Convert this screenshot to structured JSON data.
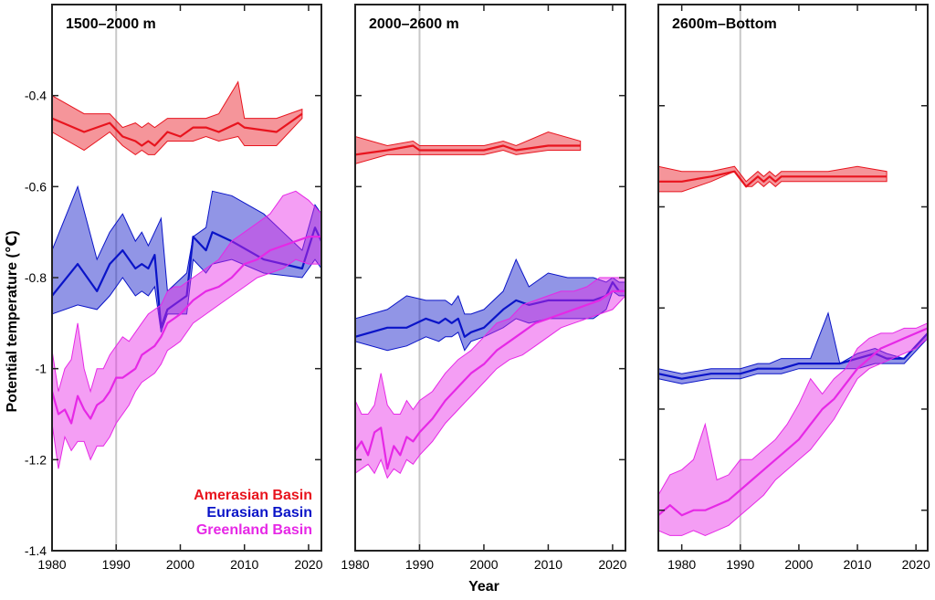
{
  "figure": {
    "ylabel": "Potential temperature (℃)",
    "xlabel": "Year"
  },
  "legend": [
    {
      "name": "Amerasian Basin",
      "color": "#e8141e"
    },
    {
      "name": "Eurasian Basin",
      "color": "#0a14c8"
    },
    {
      "name": "Greenland Basin",
      "color": "#e628e6"
    }
  ],
  "chart_data": [
    {
      "type": "line",
      "title": "1500–2000 m",
      "xlim": [
        1980,
        2022
      ],
      "ylim": [
        -1.4,
        -0.2
      ],
      "xticks": [
        1980,
        1990,
        2000,
        2010,
        2020
      ],
      "yticks": [
        -1.4,
        -1.2,
        -1,
        -0.8,
        -0.6,
        -0.4
      ],
      "ytick_labels": [
        "-1.4",
        "-1.2",
        "-1",
        "-0.8",
        "-0.6",
        "-0.4"
      ],
      "reference_line_x": 1990,
      "series": [
        {
          "name": "Amerasian Basin",
          "color": "#e8141e",
          "x": [
            1980,
            1985,
            1989,
            1991,
            1993,
            1994,
            1995,
            1996,
            1998,
            2000,
            2002,
            2004,
            2006,
            2009,
            2010,
            2015,
            2019
          ],
          "mean": [
            -0.45,
            -0.48,
            -0.46,
            -0.49,
            -0.5,
            -0.51,
            -0.5,
            -0.51,
            -0.48,
            -0.49,
            -0.47,
            -0.47,
            -0.48,
            -0.46,
            -0.47,
            -0.48,
            -0.44
          ],
          "upper": [
            -0.4,
            -0.44,
            -0.44,
            -0.47,
            -0.46,
            -0.47,
            -0.46,
            -0.47,
            -0.45,
            -0.45,
            -0.45,
            -0.45,
            -0.44,
            -0.37,
            -0.45,
            -0.45,
            -0.43
          ],
          "lower": [
            -0.48,
            -0.52,
            -0.48,
            -0.51,
            -0.53,
            -0.52,
            -0.53,
            -0.53,
            -0.5,
            -0.5,
            -0.5,
            -0.49,
            -0.5,
            -0.49,
            -0.51,
            -0.51,
            -0.45
          ]
        },
        {
          "name": "Eurasian Basin",
          "color": "#0a14c8",
          "x": [
            1980,
            1984,
            1987,
            1989,
            1991,
            1993,
            1994,
            1995,
            1996,
            1997,
            1998,
            2001,
            2002,
            2004,
            2005,
            2008,
            2013,
            2019,
            2021,
            2022
          ],
          "mean": [
            -0.84,
            -0.77,
            -0.83,
            -0.77,
            -0.74,
            -0.78,
            -0.77,
            -0.78,
            -0.75,
            -0.91,
            -0.87,
            -0.84,
            -0.71,
            -0.74,
            -0.7,
            -0.72,
            -0.76,
            -0.78,
            -0.69,
            -0.72
          ],
          "upper": [
            -0.74,
            -0.6,
            -0.76,
            -0.7,
            -0.66,
            -0.72,
            -0.7,
            -0.73,
            -0.7,
            -0.67,
            -0.83,
            -0.79,
            -0.71,
            -0.69,
            -0.61,
            -0.62,
            -0.66,
            -0.74,
            -0.64,
            -0.66
          ],
          "lower": [
            -0.88,
            -0.86,
            -0.87,
            -0.84,
            -0.8,
            -0.84,
            -0.83,
            -0.84,
            -0.82,
            -0.92,
            -0.88,
            -0.88,
            -0.76,
            -0.79,
            -0.77,
            -0.76,
            -0.79,
            -0.8,
            -0.76,
            -0.78
          ]
        },
        {
          "name": "Greenland Basin",
          "color": "#e628e6",
          "x": [
            1980,
            1981,
            1982,
            1983,
            1984,
            1985,
            1986,
            1987,
            1988,
            1989,
            1990,
            1991,
            1992,
            1993,
            1994,
            1995,
            1996,
            1997,
            1998,
            1999,
            2000,
            2002,
            2004,
            2006,
            2008,
            2010,
            2012,
            2014,
            2016,
            2018,
            2020,
            2022
          ],
          "mean": [
            -1.05,
            -1.1,
            -1.09,
            -1.12,
            -1.06,
            -1.09,
            -1.11,
            -1.08,
            -1.07,
            -1.05,
            -1.02,
            -1.02,
            -1.01,
            -1.0,
            -0.97,
            -0.96,
            -0.95,
            -0.93,
            -0.9,
            -0.89,
            -0.88,
            -0.85,
            -0.83,
            -0.82,
            -0.8,
            -0.77,
            -0.76,
            -0.74,
            -0.73,
            -0.72,
            -0.71,
            -0.71
          ],
          "upper": [
            -0.96,
            -1.05,
            -1.0,
            -0.98,
            -0.9,
            -1.0,
            -1.05,
            -1.0,
            -1.0,
            -0.97,
            -0.95,
            -0.93,
            -0.94,
            -0.92,
            -0.9,
            -0.88,
            -0.87,
            -0.86,
            -0.83,
            -0.82,
            -0.82,
            -0.8,
            -0.78,
            -0.76,
            -0.72,
            -0.7,
            -0.68,
            -0.66,
            -0.62,
            -0.61,
            -0.63,
            -0.66
          ],
          "lower": [
            -1.12,
            -1.22,
            -1.15,
            -1.18,
            -1.16,
            -1.16,
            -1.2,
            -1.17,
            -1.17,
            -1.15,
            -1.12,
            -1.1,
            -1.08,
            -1.05,
            -1.03,
            -1.02,
            -1.01,
            -0.99,
            -0.96,
            -0.95,
            -0.94,
            -0.9,
            -0.88,
            -0.86,
            -0.84,
            -0.82,
            -0.8,
            -0.79,
            -0.78,
            -0.76,
            -0.77,
            -0.77
          ]
        }
      ]
    },
    {
      "type": "line",
      "title": "2000–2600 m",
      "xlim": [
        1980,
        2022
      ],
      "ylim": [
        -1.4,
        -0.2
      ],
      "xticks": [
        1980,
        1990,
        2000,
        2010,
        2020
      ],
      "yticks": [
        -1.4,
        -1.2,
        -1,
        -0.8,
        -0.6,
        -0.4
      ],
      "reference_line_x": 1990,
      "series": [
        {
          "name": "Amerasian Basin",
          "color": "#e8141e",
          "x": [
            1980,
            1985,
            1989,
            1990,
            1995,
            2000,
            2003,
            2005,
            2010,
            2015
          ],
          "mean": [
            -0.53,
            -0.52,
            -0.51,
            -0.52,
            -0.52,
            -0.52,
            -0.51,
            -0.52,
            -0.51,
            -0.51
          ],
          "upper": [
            -0.49,
            -0.51,
            -0.5,
            -0.51,
            -0.51,
            -0.51,
            -0.5,
            -0.51,
            -0.48,
            -0.5
          ],
          "lower": [
            -0.55,
            -0.53,
            -0.53,
            -0.53,
            -0.53,
            -0.53,
            -0.52,
            -0.53,
            -0.52,
            -0.52
          ]
        },
        {
          "name": "Eurasian Basin",
          "color": "#0a14c8",
          "x": [
            1980,
            1985,
            1988,
            1991,
            1993,
            1994,
            1995,
            1996,
            1997,
            1998,
            2000,
            2003,
            2005,
            2007,
            2010,
            2013,
            2017,
            2019,
            2020,
            2021,
            2022
          ],
          "mean": [
            -0.93,
            -0.91,
            -0.91,
            -0.89,
            -0.9,
            -0.89,
            -0.9,
            -0.89,
            -0.93,
            -0.92,
            -0.91,
            -0.87,
            -0.85,
            -0.86,
            -0.85,
            -0.85,
            -0.85,
            -0.84,
            -0.81,
            -0.83,
            -0.83
          ],
          "upper": [
            -0.89,
            -0.87,
            -0.84,
            -0.85,
            -0.85,
            -0.85,
            -0.86,
            -0.84,
            -0.88,
            -0.88,
            -0.87,
            -0.83,
            -0.76,
            -0.82,
            -0.79,
            -0.8,
            -0.8,
            -0.81,
            -0.8,
            -0.81,
            -0.81
          ],
          "lower": [
            -0.94,
            -0.96,
            -0.95,
            -0.93,
            -0.94,
            -0.93,
            -0.93,
            -0.92,
            -0.96,
            -0.94,
            -0.93,
            -0.91,
            -0.89,
            -0.9,
            -0.89,
            -0.89,
            -0.89,
            -0.87,
            -0.83,
            -0.84,
            -0.84
          ]
        },
        {
          "name": "Greenland Basin",
          "color": "#e628e6",
          "x": [
            1980,
            1981,
            1982,
            1983,
            1984,
            1985,
            1986,
            1987,
            1988,
            1989,
            1990,
            1992,
            1994,
            1996,
            1998,
            2000,
            2002,
            2004,
            2006,
            2008,
            2010,
            2012,
            2014,
            2016,
            2018,
            2020,
            2022
          ],
          "mean": [
            -1.18,
            -1.16,
            -1.19,
            -1.14,
            -1.13,
            -1.22,
            -1.17,
            -1.19,
            -1.15,
            -1.16,
            -1.14,
            -1.11,
            -1.07,
            -1.04,
            -1.01,
            -0.99,
            -0.96,
            -0.94,
            -0.92,
            -0.9,
            -0.89,
            -0.88,
            -0.87,
            -0.86,
            -0.85,
            -0.83,
            -0.83
          ],
          "upper": [
            -1.07,
            -1.1,
            -1.1,
            -1.08,
            -1.01,
            -1.08,
            -1.1,
            -1.1,
            -1.07,
            -1.09,
            -1.07,
            -1.05,
            -1.01,
            -0.98,
            -0.96,
            -0.93,
            -0.9,
            -0.89,
            -0.86,
            -0.85,
            -0.84,
            -0.83,
            -0.83,
            -0.82,
            -0.8,
            -0.8,
            -0.8
          ],
          "lower": [
            -1.23,
            -1.22,
            -1.21,
            -1.23,
            -1.2,
            -1.24,
            -1.22,
            -1.23,
            -1.2,
            -1.21,
            -1.19,
            -1.16,
            -1.12,
            -1.09,
            -1.06,
            -1.03,
            -1.0,
            -0.98,
            -0.97,
            -0.95,
            -0.93,
            -0.91,
            -0.9,
            -0.89,
            -0.88,
            -0.87,
            -0.84
          ]
        }
      ]
    },
    {
      "type": "line",
      "title": "2600m–Bottom",
      "xlim": [
        1976,
        2022
      ],
      "ylim": [
        -1.28,
        -0.2
      ],
      "xticks": [
        1980,
        1990,
        2000,
        2010,
        2020
      ],
      "yticks": [
        -1.2,
        -1,
        -0.8,
        -0.6,
        -0.4
      ],
      "reference_line_x": 1990,
      "series": [
        {
          "name": "Amerasian Basin",
          "color": "#e8141e",
          "x": [
            1976,
            1980,
            1985,
            1989,
            1991,
            1992,
            1993,
            1994,
            1995,
            1996,
            1997,
            2000,
            2005,
            2010,
            2015
          ],
          "mean": [
            -0.55,
            -0.55,
            -0.54,
            -0.53,
            -0.56,
            -0.55,
            -0.54,
            -0.55,
            -0.54,
            -0.55,
            -0.54,
            -0.54,
            -0.54,
            -0.54,
            -0.54
          ],
          "upper": [
            -0.52,
            -0.53,
            -0.53,
            -0.52,
            -0.55,
            -0.54,
            -0.53,
            -0.54,
            -0.53,
            -0.54,
            -0.53,
            -0.53,
            -0.53,
            -0.52,
            -0.53
          ],
          "lower": [
            -0.57,
            -0.57,
            -0.55,
            -0.53,
            -0.56,
            -0.56,
            -0.55,
            -0.56,
            -0.55,
            -0.56,
            -0.55,
            -0.55,
            -0.55,
            -0.55,
            -0.55
          ]
        },
        {
          "name": "Eurasian Basin",
          "color": "#0a14c8",
          "x": [
            1976,
            1980,
            1985,
            1990,
            1993,
            1995,
            1997,
            2000,
            2002,
            2005,
            2007,
            2010,
            2013,
            2015,
            2018,
            2022
          ],
          "mean": [
            -0.93,
            -0.94,
            -0.93,
            -0.93,
            -0.92,
            -0.92,
            -0.92,
            -0.91,
            -0.91,
            -0.91,
            -0.91,
            -0.9,
            -0.89,
            -0.9,
            -0.9,
            -0.85
          ],
          "upper": [
            -0.92,
            -0.93,
            -0.92,
            -0.92,
            -0.91,
            -0.91,
            -0.9,
            -0.9,
            -0.9,
            -0.81,
            -0.91,
            -0.89,
            -0.88,
            -0.89,
            -0.9,
            -0.85
          ],
          "lower": [
            -0.94,
            -0.95,
            -0.94,
            -0.94,
            -0.93,
            -0.93,
            -0.93,
            -0.92,
            -0.92,
            -0.92,
            -0.92,
            -0.92,
            -0.91,
            -0.91,
            -0.91,
            -0.86
          ]
        },
        {
          "name": "Greenland Basin",
          "color": "#e628e6",
          "x": [
            1976,
            1978,
            1980,
            1982,
            1984,
            1986,
            1988,
            1990,
            1992,
            1994,
            1996,
            1998,
            2000,
            2002,
            2004,
            2006,
            2008,
            2010,
            2012,
            2014,
            2016,
            2018,
            2020,
            2022
          ],
          "mean": [
            -1.21,
            -1.19,
            -1.21,
            -1.2,
            -1.2,
            -1.19,
            -1.18,
            -1.16,
            -1.14,
            -1.12,
            -1.1,
            -1.08,
            -1.06,
            -1.03,
            -1.0,
            -0.98,
            -0.95,
            -0.92,
            -0.9,
            -0.88,
            -0.87,
            -0.86,
            -0.85,
            -0.84
          ],
          "upper": [
            -1.17,
            -1.13,
            -1.12,
            -1.1,
            -1.03,
            -1.14,
            -1.13,
            -1.1,
            -1.1,
            -1.08,
            -1.06,
            -1.03,
            -0.99,
            -0.94,
            -0.97,
            -0.94,
            -0.92,
            -0.88,
            -0.86,
            -0.85,
            -0.85,
            -0.84,
            -0.84,
            -0.83
          ],
          "lower": [
            -1.24,
            -1.25,
            -1.25,
            -1.24,
            -1.25,
            -1.24,
            -1.23,
            -1.21,
            -1.19,
            -1.17,
            -1.14,
            -1.12,
            -1.1,
            -1.08,
            -1.05,
            -1.02,
            -0.98,
            -0.94,
            -0.92,
            -0.91,
            -0.9,
            -0.89,
            -0.88,
            -0.86
          ]
        }
      ]
    }
  ]
}
